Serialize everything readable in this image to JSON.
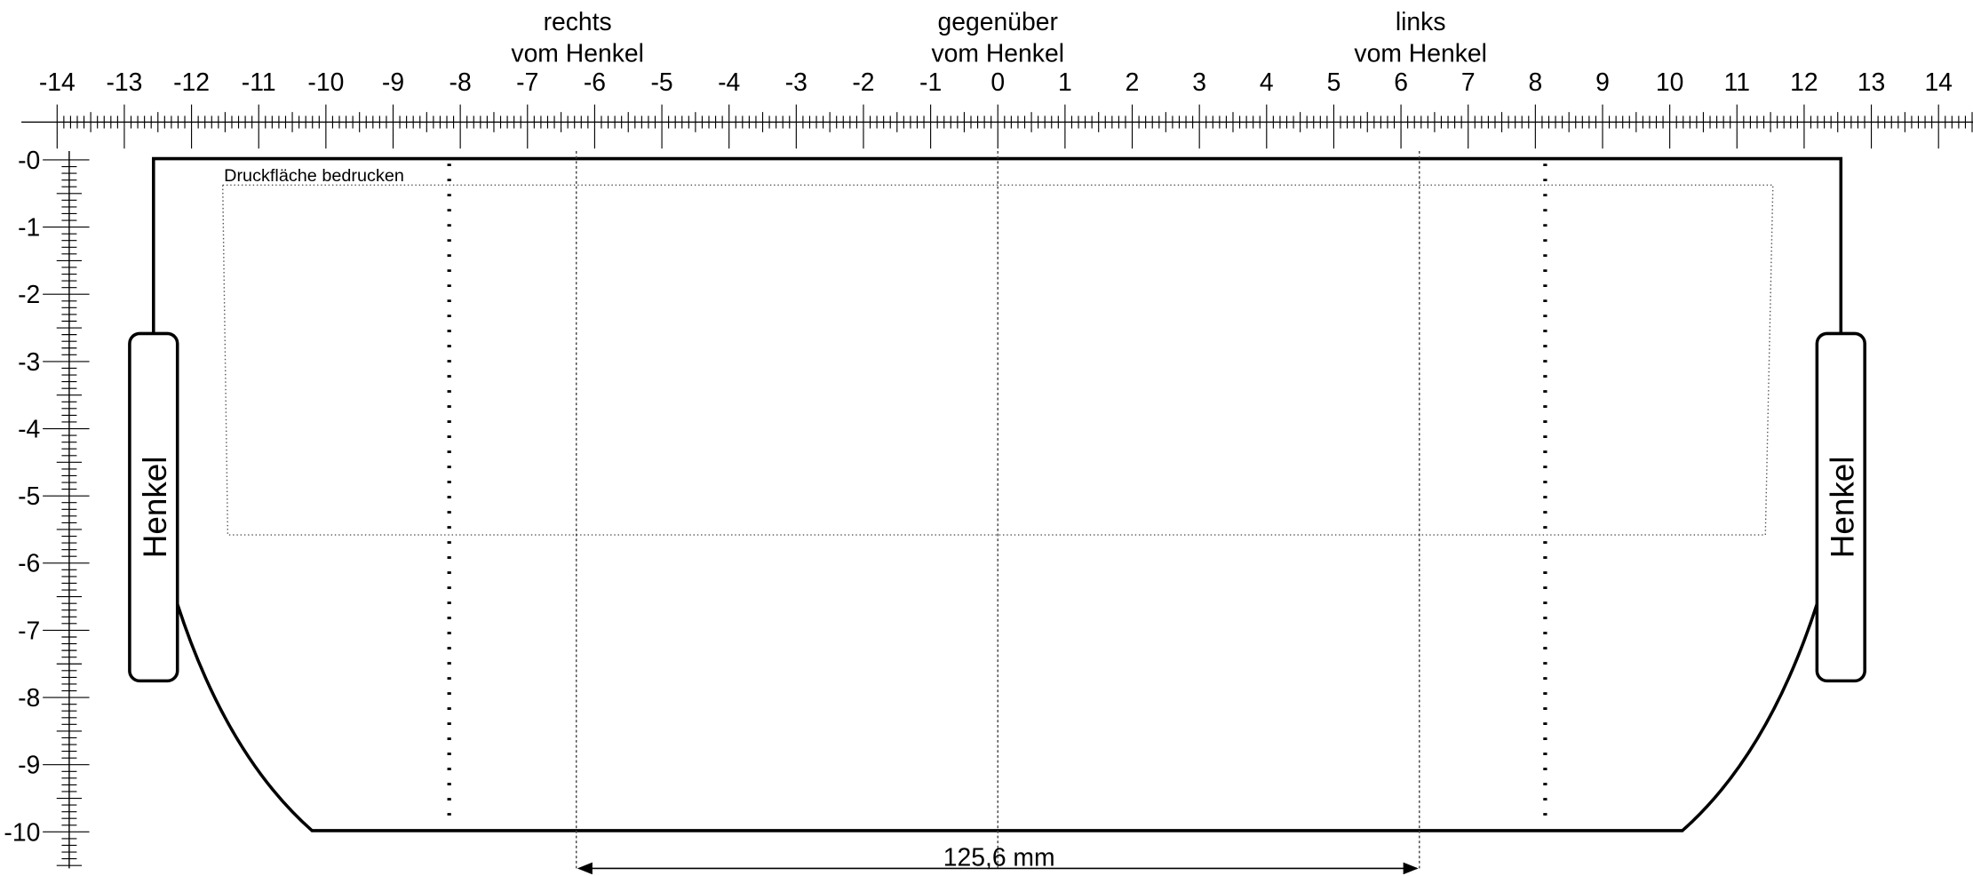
{
  "headers": [
    {
      "lines": [
        "rechts",
        "vom Henkel"
      ]
    },
    {
      "lines": [
        "gegenüber",
        "vom Henkel"
      ]
    },
    {
      "lines": [
        "links",
        "vom Henkel"
      ]
    }
  ],
  "ruler": {
    "top_labels": [
      -14,
      -13,
      -12,
      -11,
      -10,
      -9,
      -8,
      -7,
      -6,
      -5,
      -4,
      -3,
      -2,
      -1,
      0,
      1,
      2,
      3,
      4,
      5,
      6,
      7,
      8,
      9,
      10,
      11,
      12,
      13,
      14
    ],
    "left_labels": [
      "-0",
      -1,
      -2,
      -3,
      -4,
      -5,
      -6,
      -7,
      -8,
      -9,
      -10
    ]
  },
  "print_area_label": "Druckfläche bedrucken",
  "handles": [
    {
      "label": "Henkel"
    },
    {
      "label": "Henkel"
    }
  ],
  "dimension_label": "125,6 mm"
}
